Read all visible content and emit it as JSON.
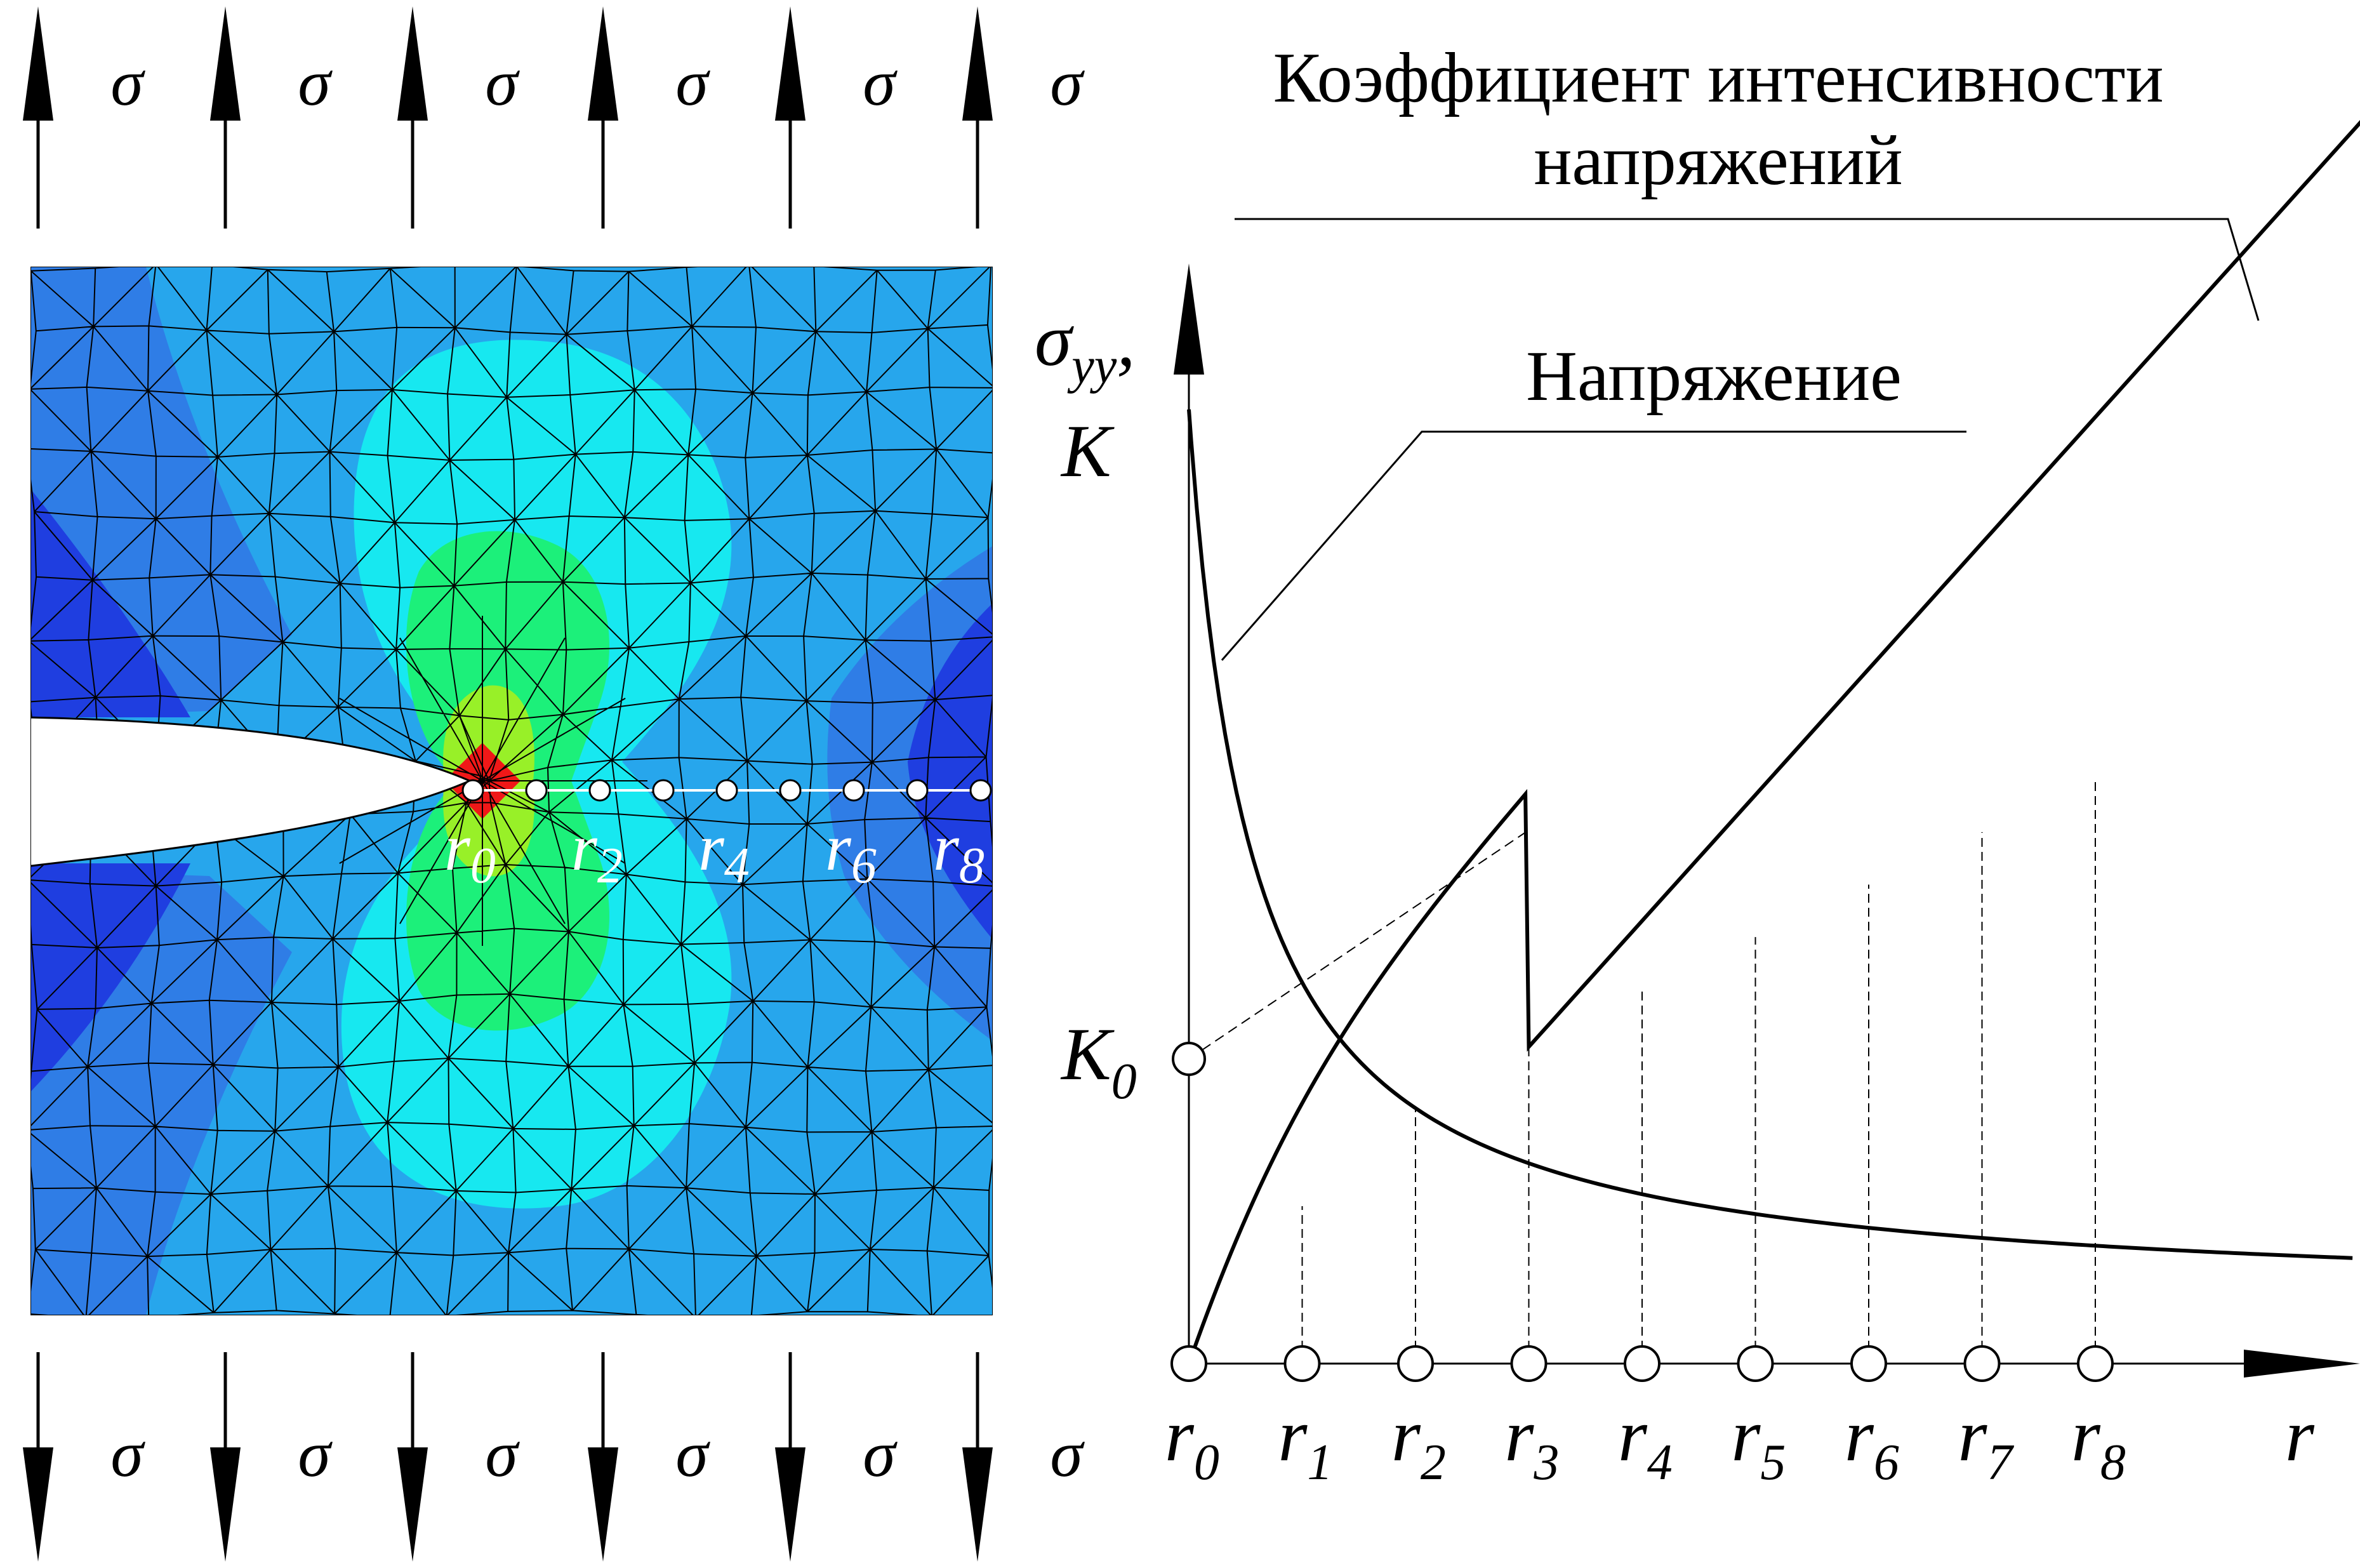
{
  "load_symbol": "σ",
  "curve_labels": {
    "sif_line1": "Коэффициент интенсивности",
    "sif_line2": "напряжений",
    "stress": "Напряжение"
  },
  "axes": {
    "y_symbol": "σ",
    "y_subscript": "yy",
    "y_comma": ",",
    "y_K": "K",
    "x_label": "r",
    "k0_base": "K",
    "k0_sub": "0"
  },
  "r_base": "r",
  "r_subscripts": [
    "0",
    "1",
    "2",
    "3",
    "4",
    "5",
    "6",
    "7",
    "8"
  ],
  "mesh_point_subscripts": [
    "0",
    "2",
    "4",
    "6",
    "8"
  ],
  "colors": {
    "deep_blue": "#1f3ee0",
    "blue": "#2f7de6",
    "light_blue": "#27a6ec",
    "cyan": "#17e8f0",
    "green": "#1cf07a",
    "lime": "#98f028",
    "red": "#f01818",
    "ink": "#000000"
  },
  "chart_data": {
    "type": "line",
    "x": [
      0,
      1,
      2,
      3,
      4,
      5,
      6,
      7,
      8
    ],
    "x_tick_labels": [
      "r0",
      "r1",
      "r2",
      "r3",
      "r4",
      "r5",
      "r6",
      "r7",
      "r8"
    ],
    "series": [
      {
        "name": "Напряжение",
        "values": [
          10,
          4.68,
          3.15,
          2.37,
          1.86,
          1.51,
          1.27,
          1.09,
          0.97
        ]
      },
      {
        "name": "Коэффициент интенсивности напряжений",
        "values": [
          0,
          1.65,
          2.66,
          3.32,
          3.91,
          4.47,
          5.02,
          5.57,
          6.12
        ]
      }
    ],
    "K0": 2.1
  }
}
